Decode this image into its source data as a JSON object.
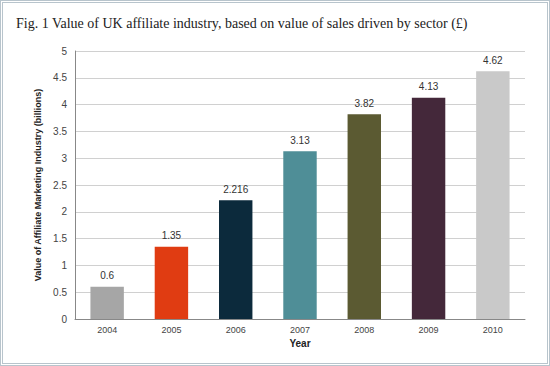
{
  "chart_data": {
    "type": "bar",
    "title": "Fig. 1 Value of UK affiliate industry, based on value of sales driven by sector (£)",
    "x_label": "Year",
    "y_label": "Value of Affiliate Marketing Industry (billions)",
    "categories": [
      "2004",
      "2005",
      "2006",
      "2007",
      "2008",
      "2009",
      "2010"
    ],
    "values": [
      0.6,
      1.35,
      2.216,
      3.13,
      3.82,
      4.13,
      4.62
    ],
    "colors": [
      "#a6a6a6",
      "#e03c12",
      "#0c2a3c",
      "#4f8e97",
      "#5b5a32",
      "#44283a",
      "#c9c9c9"
    ],
    "ylim": [
      0,
      5
    ],
    "yticks": [
      0,
      0.5,
      1,
      1.5,
      2,
      2.5,
      3,
      3.5,
      4,
      4.5,
      5
    ],
    "grid": true,
    "data_labels": true
  }
}
